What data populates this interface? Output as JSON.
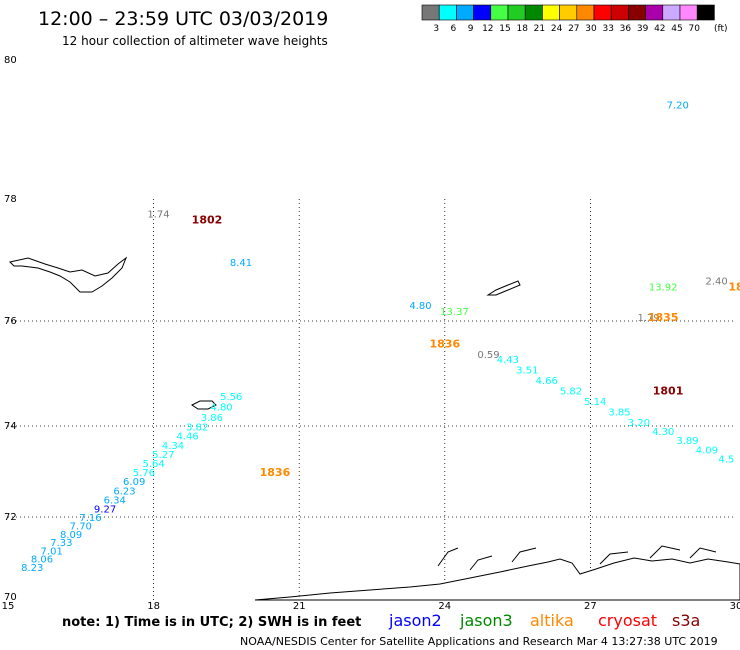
{
  "header": {
    "title": "12:00 – 23:59 UTC 03/03/2019",
    "subtitle": "12 hour collection of altimeter wave heights"
  },
  "legend": {
    "unit": "(ft)",
    "bins": [
      {
        "label": "3",
        "color": "#777777"
      },
      {
        "label": "6",
        "color": "#00ffff"
      },
      {
        "label": "9",
        "color": "#00aaff"
      },
      {
        "label": "12",
        "color": "#0000ff"
      },
      {
        "label": "15",
        "color": "#44ff44"
      },
      {
        "label": "18",
        "color": "#22cc22"
      },
      {
        "label": "21",
        "color": "#008800"
      },
      {
        "label": "24",
        "color": "#ffff00"
      },
      {
        "label": "27",
        "color": "#ffcc00"
      },
      {
        "label": "30",
        "color": "#ff8800"
      },
      {
        "label": "33",
        "color": "#ff0000"
      },
      {
        "label": "36",
        "color": "#cc0000"
      },
      {
        "label": "39",
        "color": "#880000"
      },
      {
        "label": "42",
        "color": "#aa00aa"
      },
      {
        "label": "45",
        "color": "#ccaaff"
      },
      {
        "label": "70",
        "color": "#ff88ff"
      },
      {
        "label": "",
        "color": "#000000"
      }
    ]
  },
  "chart_data": {
    "type": "scatter",
    "xlim": [
      15,
      30
    ],
    "ylim": [
      70,
      80
    ],
    "x_ticks": [
      "15",
      "18",
      "21",
      "24",
      "27",
      "30"
    ],
    "y_ticks": [
      "70",
      "72",
      "74",
      "76",
      "78",
      "80"
    ],
    "grid": true,
    "time_labels": [
      {
        "x": 19.1,
        "y": 77.6,
        "text": "1802",
        "color": "#880000"
      },
      {
        "x": 24.0,
        "y": 75.5,
        "text": "1836",
        "color": "#ff8800"
      },
      {
        "x": 28.5,
        "y": 76.0,
        "text": "1835",
        "color": "#ff8800"
      },
      {
        "x": 30.0,
        "y": 76.5,
        "text": "18",
        "color": "#ff8800"
      },
      {
        "x": 28.6,
        "y": 74.6,
        "text": "1801",
        "color": "#880000"
      },
      {
        "x": 20.5,
        "y": 72.9,
        "text": "1836",
        "color": "#ff8800"
      }
    ],
    "points": [
      {
        "x": 18.1,
        "y": 77.7,
        "v": "1.74",
        "color": "#777777"
      },
      {
        "x": 19.8,
        "y": 76.9,
        "v": "8.41",
        "color": "#00aaff"
      },
      {
        "x": 23.5,
        "y": 76.2,
        "v": "4.80",
        "color": "#00aaff"
      },
      {
        "x": 24.2,
        "y": 76.1,
        "v": "13.37",
        "color": "#44ff44"
      },
      {
        "x": 28.5,
        "y": 76.5,
        "v": "13.92",
        "color": "#44ff44"
      },
      {
        "x": 29.6,
        "y": 76.6,
        "v": "2.40",
        "color": "#777777"
      },
      {
        "x": 28.2,
        "y": 76.0,
        "v": "1.79",
        "color": "#777777"
      },
      {
        "x": 24.9,
        "y": 75.3,
        "v": "0.59",
        "color": "#777777"
      },
      {
        "x": 25.3,
        "y": 75.2,
        "v": "4.43",
        "color": "#00ffff"
      },
      {
        "x": 25.7,
        "y": 75.0,
        "v": "3.51",
        "color": "#00ffff"
      },
      {
        "x": 26.1,
        "y": 74.8,
        "v": "4.66",
        "color": "#00ffff"
      },
      {
        "x": 26.6,
        "y": 74.6,
        "v": "5.82",
        "color": "#00ffff"
      },
      {
        "x": 27.1,
        "y": 74.4,
        "v": "5.14",
        "color": "#00ffff"
      },
      {
        "x": 27.6,
        "y": 74.2,
        "v": "3.85",
        "color": "#00ffff"
      },
      {
        "x": 28.0,
        "y": 74.0,
        "v": "3.20",
        "color": "#00ffff"
      },
      {
        "x": 28.5,
        "y": 73.8,
        "v": "4.30",
        "color": "#00ffff"
      },
      {
        "x": 29.0,
        "y": 73.6,
        "v": "3.89",
        "color": "#00ffff"
      },
      {
        "x": 29.4,
        "y": 73.4,
        "v": "4.09",
        "color": "#00ffff"
      },
      {
        "x": 29.8,
        "y": 73.2,
        "v": "4.5",
        "color": "#00ffff"
      },
      {
        "x": 28.8,
        "y": 79.3,
        "v": "7.20",
        "color": "#00aaff"
      },
      {
        "x": 19.6,
        "y": 74.5,
        "v": "5.56",
        "color": "#00ffff"
      },
      {
        "x": 19.4,
        "y": 74.3,
        "v": "4.80",
        "color": "#00ffff"
      },
      {
        "x": 19.2,
        "y": 74.1,
        "v": "3.86",
        "color": "#00ffff"
      },
      {
        "x": 18.9,
        "y": 73.9,
        "v": "3.82",
        "color": "#00ffff"
      },
      {
        "x": 18.7,
        "y": 73.7,
        "v": "4.46",
        "color": "#00ffff"
      },
      {
        "x": 18.4,
        "y": 73.5,
        "v": "4.34",
        "color": "#00ffff"
      },
      {
        "x": 18.2,
        "y": 73.3,
        "v": "5.27",
        "color": "#00ffff"
      },
      {
        "x": 18.0,
        "y": 73.1,
        "v": "5.64",
        "color": "#00ffff"
      },
      {
        "x": 17.8,
        "y": 72.9,
        "v": "5.76",
        "color": "#00ffff"
      },
      {
        "x": 17.6,
        "y": 72.7,
        "v": "6.09",
        "color": "#00aaff"
      },
      {
        "x": 17.4,
        "y": 72.5,
        "v": "6.23",
        "color": "#00aaff"
      },
      {
        "x": 17.2,
        "y": 72.3,
        "v": "6.34",
        "color": "#00aaff"
      },
      {
        "x": 17.0,
        "y": 72.1,
        "v": "9.27",
        "color": "#0000ff"
      },
      {
        "x": 16.7,
        "y": 71.9,
        "v": "7.16",
        "color": "#00aaff"
      },
      {
        "x": 16.5,
        "y": 71.7,
        "v": "7.70",
        "color": "#00aaff"
      },
      {
        "x": 16.3,
        "y": 71.5,
        "v": "8.09",
        "color": "#00aaff"
      },
      {
        "x": 16.1,
        "y": 71.3,
        "v": "7.33",
        "color": "#00aaff"
      },
      {
        "x": 15.9,
        "y": 71.1,
        "v": "7.01",
        "color": "#00aaff"
      },
      {
        "x": 15.7,
        "y": 70.9,
        "v": "8.06",
        "color": "#00aaff"
      },
      {
        "x": 15.5,
        "y": 70.7,
        "v": "8.23",
        "color": "#00aaff"
      }
    ]
  },
  "footer": {
    "note": "note:  1) Time is in UTC;  2) SWH is in feet",
    "missions": [
      {
        "name": "jason2",
        "color": "#0000ff"
      },
      {
        "name": "jason3",
        "color": "#008800"
      },
      {
        "name": "altika",
        "color": "#ff8800"
      },
      {
        "name": "cryosat",
        "color": "#ff0000"
      },
      {
        "name": "s3a",
        "color": "#880000"
      }
    ],
    "credit": "NOAA/NESDIS Center for Satellite Applications and Research    Mar  4 13:27:38 UTC 2019"
  }
}
